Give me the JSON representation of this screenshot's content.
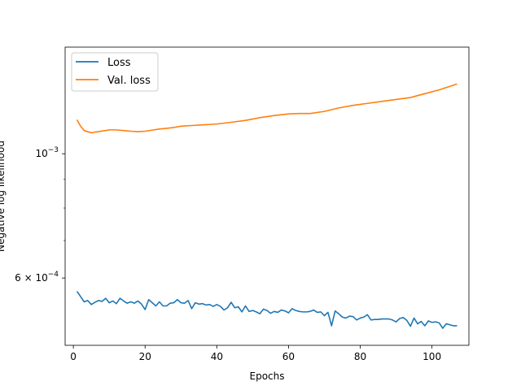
{
  "chart_data": {
    "type": "line",
    "title": "",
    "xlabel": "Epochs",
    "ylabel": "Negative log likelihood",
    "yscale": "log",
    "xlim": [
      -2.3,
      110.3
    ],
    "ylim": [
      0.000455,
      0.00155
    ],
    "x_ticks": [
      0,
      20,
      40,
      60,
      80,
      100
    ],
    "x_tick_labels": [
      "0",
      "20",
      "40",
      "60",
      "80",
      "100"
    ],
    "y_ticks": [
      0.001,
      0.0006
    ],
    "y_tick_base": [
      "10",
      "6 × 10"
    ],
    "y_tick_exp": [
      "−3",
      "−4"
    ],
    "y_minor_ticks": [
      0.0007,
      0.0008,
      0.0009
    ],
    "legend_position": "upper-left",
    "grid": false,
    "series": [
      {
        "name": "Loss",
        "color": "#1f77b4",
        "x": [
          1,
          2,
          3,
          4,
          5,
          6,
          7,
          8,
          9,
          10,
          11,
          12,
          13,
          14,
          15,
          16,
          17,
          18,
          19,
          20,
          21,
          22,
          23,
          24,
          25,
          26,
          27,
          28,
          29,
          30,
          31,
          32,
          33,
          34,
          35,
          36,
          37,
          38,
          39,
          40,
          41,
          42,
          43,
          44,
          45,
          46,
          47,
          48,
          49,
          50,
          51,
          52,
          53,
          54,
          55,
          56,
          57,
          58,
          59,
          60,
          61,
          62,
          63,
          64,
          65,
          66,
          67,
          68,
          69,
          70,
          71,
          72,
          73,
          74,
          75,
          76,
          77,
          78,
          79,
          80,
          81,
          82,
          83,
          84,
          85,
          86,
          87,
          88,
          89,
          90,
          91,
          92,
          93,
          94,
          95,
          96,
          97,
          98,
          99,
          100,
          101,
          102,
          103,
          104,
          105,
          106,
          107
        ],
        "y": [
          0.000568,
          0.000556,
          0.000544,
          0.000547,
          0.000538,
          0.000543,
          0.000547,
          0.000545,
          0.000552,
          0.000542,
          0.000546,
          0.00054,
          0.000552,
          0.000546,
          0.000541,
          0.000544,
          0.000541,
          0.000546,
          0.000539,
          0.000527,
          0.000549,
          0.000542,
          0.000535,
          0.000544,
          0.000535,
          0.000535,
          0.000541,
          0.000542,
          0.000549,
          0.000542,
          0.000541,
          0.000547,
          0.000529,
          0.000542,
          0.000539,
          0.00054,
          0.000537,
          0.000538,
          0.000534,
          0.000538,
          0.000534,
          0.000526,
          0.000531,
          0.000543,
          0.000531,
          0.000533,
          0.000522,
          0.000535,
          0.000523,
          0.000525,
          0.000522,
          0.000518,
          0.000528,
          0.000525,
          0.000519,
          0.000523,
          0.000521,
          0.000526,
          0.000524,
          0.00052,
          0.000529,
          0.000525,
          0.000523,
          0.000522,
          0.000522,
          0.000523,
          0.000526,
          0.000521,
          0.000522,
          0.000514,
          0.000521,
          0.000493,
          0.000524,
          0.000518,
          0.000511,
          0.000509,
          0.000513,
          0.000512,
          0.000505,
          0.000509,
          0.000511,
          0.000516,
          0.000505,
          0.000506,
          0.000506,
          0.000507,
          0.000507,
          0.000507,
          0.000505,
          0.000501,
          0.000508,
          0.00051,
          0.000504,
          0.000492,
          0.000509,
          0.000497,
          0.000502,
          0.000493,
          0.000503,
          0.0005,
          0.000501,
          0.000499,
          0.000488,
          0.000497,
          0.000495,
          0.000493,
          0.000493
        ]
      },
      {
        "name": "Val. loss",
        "color": "#ff7f0e",
        "x": [
          1,
          2,
          3,
          4,
          5,
          6,
          7,
          8,
          9,
          10,
          12,
          14,
          16,
          18,
          20,
          22,
          24,
          26,
          28,
          30,
          33,
          36,
          40,
          44,
          48,
          52,
          56,
          60,
          63,
          66,
          70,
          74,
          78,
          82,
          86,
          90,
          94,
          98,
          102,
          107
        ],
        "y": [
          0.00115,
          0.00112,
          0.0011,
          0.001095,
          0.00109,
          0.001093,
          0.001095,
          0.001098,
          0.0011,
          0.001103,
          0.001103,
          0.0011,
          0.001097,
          0.001095,
          0.001097,
          0.001102,
          0.001107,
          0.00111,
          0.001114,
          0.00112,
          0.001123,
          0.001126,
          0.00113,
          0.001138,
          0.001147,
          0.00116,
          0.00117,
          0.001178,
          0.00118,
          0.00118,
          0.00119,
          0.001207,
          0.00122,
          0.00123,
          0.00124,
          0.00125,
          0.00126,
          0.00128,
          0.0013,
          0.001332
        ]
      }
    ]
  }
}
